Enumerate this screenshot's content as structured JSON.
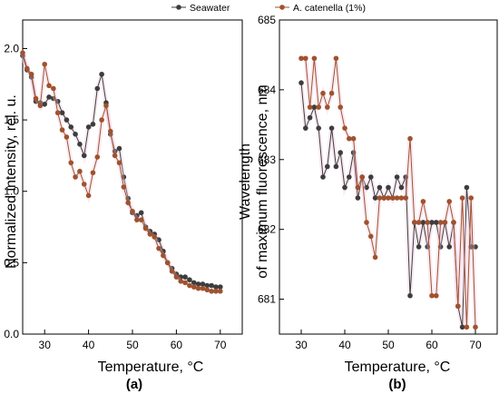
{
  "legend": {
    "items": [
      {
        "label": "Seawater",
        "color": "#3d3d3d"
      },
      {
        "label": "A. catenella (1%)",
        "color": "#a0522d"
      }
    ]
  },
  "chart_data": [
    {
      "panel_label": "(a)",
      "type": "line",
      "xlabel": "Temperature, °C",
      "ylabel": "Normalized intensity, rel. u.",
      "xlim": [
        25,
        75
      ],
      "ylim": [
        0,
        2.2
      ],
      "xticks": [
        30,
        40,
        50,
        60,
        70
      ],
      "yticks": [
        0.0,
        0.5,
        1.0,
        1.5,
        2.0
      ],
      "ytick_labels": [
        "0.0",
        "0.5",
        "1.0",
        "1.5",
        "2.0"
      ],
      "series": [
        {
          "name": "Seawater",
          "color": "#3d3d3d",
          "x": [
            25,
            26,
            27,
            28,
            29,
            30,
            31,
            32,
            33,
            34,
            35,
            36,
            37,
            38,
            39,
            40,
            41,
            42,
            43,
            44,
            45,
            46,
            47,
            48,
            49,
            50,
            51,
            52,
            53,
            54,
            55,
            56,
            57,
            58,
            59,
            60,
            61,
            62,
            63,
            64,
            65,
            66,
            67,
            68,
            69,
            70
          ],
          "y": [
            1.95,
            1.85,
            1.8,
            1.63,
            1.62,
            1.61,
            1.66,
            1.65,
            1.63,
            1.55,
            1.5,
            1.45,
            1.4,
            1.33,
            1.25,
            1.45,
            1.47,
            1.72,
            1.82,
            1.62,
            1.4,
            1.28,
            1.3,
            1.1,
            0.95,
            0.85,
            0.83,
            0.85,
            0.75,
            0.72,
            0.7,
            0.66,
            0.58,
            0.5,
            0.46,
            0.42,
            0.4,
            0.4,
            0.38,
            0.36,
            0.35,
            0.35,
            0.34,
            0.34,
            0.33,
            0.33
          ]
        },
        {
          "name": "A. catenella (1%)",
          "color": "#a0522d",
          "x": [
            25,
            26,
            27,
            28,
            29,
            30,
            31,
            32,
            33,
            34,
            35,
            36,
            37,
            38,
            39,
            40,
            41,
            42,
            43,
            44,
            45,
            46,
            47,
            48,
            49,
            50,
            51,
            52,
            53,
            54,
            55,
            56,
            57,
            58,
            59,
            60,
            61,
            62,
            63,
            64,
            65,
            66,
            67,
            68,
            69,
            70
          ],
          "y": [
            1.97,
            1.86,
            1.82,
            1.65,
            1.6,
            1.89,
            1.74,
            1.72,
            1.55,
            1.43,
            1.38,
            1.2,
            1.1,
            1.14,
            1.05,
            0.97,
            1.13,
            1.24,
            1.5,
            1.6,
            1.42,
            1.25,
            1.2,
            1.03,
            0.92,
            0.86,
            0.8,
            0.8,
            0.74,
            0.7,
            0.68,
            0.6,
            0.55,
            0.5,
            0.44,
            0.4,
            0.37,
            0.36,
            0.34,
            0.33,
            0.32,
            0.32,
            0.31,
            0.3,
            0.3,
            0.3
          ]
        }
      ]
    },
    {
      "panel_label": "(b)",
      "type": "line",
      "xlabel": "Temperature, °C",
      "ylabel_line1": "Wavelength",
      "ylabel_line2": "of maximum fluorescence, nm",
      "xlim": [
        25,
        75
      ],
      "ylim": [
        680.5,
        685
      ],
      "xticks": [
        30,
        40,
        50,
        60,
        70
      ],
      "yticks": [
        681,
        682,
        683,
        684,
        685
      ],
      "series": [
        {
          "name": "Seawater",
          "color": "#3d3d3d",
          "x": [
            30,
            31,
            32,
            33,
            34,
            35,
            36,
            37,
            38,
            39,
            40,
            41,
            42,
            43,
            44,
            45,
            46,
            47,
            48,
            49,
            50,
            51,
            52,
            53,
            54,
            55,
            56,
            57,
            58,
            59,
            60,
            61,
            62,
            63,
            64,
            65,
            66,
            67,
            68,
            69,
            70
          ],
          "y": [
            684.1,
            683.45,
            683.6,
            683.75,
            683.45,
            682.75,
            682.9,
            683.45,
            682.9,
            683.1,
            682.6,
            682.75,
            683.1,
            682.45,
            682.75,
            682.6,
            682.75,
            682.45,
            682.6,
            682.45,
            682.6,
            682.45,
            682.75,
            682.6,
            682.75,
            681.05,
            682.1,
            681.75,
            682.1,
            681.75,
            682.1,
            682.1,
            681.75,
            682.1,
            681.75,
            682.1,
            680.9,
            680.6,
            682.6,
            681.75,
            681.75
          ]
        },
        {
          "name": "A. catenella (1%)",
          "color": "#a0522d",
          "x": [
            30,
            31,
            32,
            33,
            34,
            35,
            36,
            37,
            38,
            39,
            40,
            41,
            42,
            43,
            44,
            45,
            46,
            47,
            48,
            49,
            50,
            51,
            52,
            53,
            54,
            55,
            56,
            57,
            58,
            59,
            60,
            61,
            62,
            63,
            64,
            65,
            66,
            67,
            68,
            69,
            70
          ],
          "y": [
            684.45,
            684.45,
            683.75,
            684.45,
            683.75,
            683.95,
            683.75,
            683.95,
            684.45,
            683.75,
            683.45,
            683.3,
            683.3,
            682.6,
            682.75,
            682.1,
            681.9,
            681.6,
            682.45,
            682.45,
            682.45,
            682.45,
            682.45,
            682.45,
            682.45,
            683.3,
            682.1,
            682.1,
            682.4,
            682.1,
            681.05,
            681.05,
            682.1,
            682.1,
            682.4,
            682.1,
            680.9,
            682.45,
            680.6,
            682.45,
            680.6
          ]
        }
      ]
    }
  ]
}
